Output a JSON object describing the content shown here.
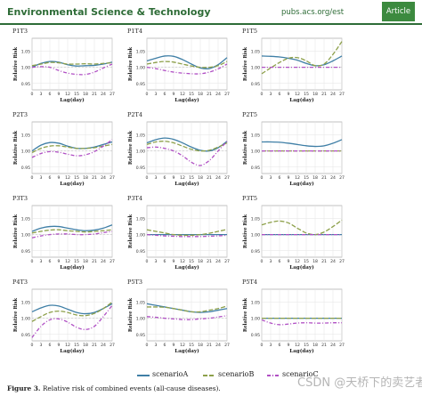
{
  "header": {
    "journal": "Environmental Science & Technology",
    "url": "pubs.acs.org/est",
    "badge": "Article"
  },
  "legend": [
    {
      "label": "scenarioA",
      "color": "#3f7fa6",
      "dash": ""
    },
    {
      "label": "scenarioB",
      "color": "#8da04a",
      "dash": "7,3"
    },
    {
      "label": "scenarioC",
      "color": "#b04fc4",
      "dash": "5,2,1.5,2"
    }
  ],
  "caption": {
    "bold": "Figure 3.",
    "text": " Relative risk of combined events (all-cause diseases)."
  },
  "watermark": "CSDN @天桥下的卖艺者",
  "chart_data": [
    {
      "type": "line",
      "title": "P1T3",
      "ylabel": "Relative Risk",
      "xlabel": "Lag(day)",
      "x": [
        0,
        3,
        6,
        9,
        12,
        15,
        18,
        21,
        24,
        27
      ],
      "xticks": [
        0,
        3,
        6,
        9,
        12,
        15,
        18,
        21,
        24,
        27
      ],
      "ylim": [
        0.93,
        1.09
      ],
      "yticks": [
        0.9,
        0.95,
        1.0,
        1.05
      ],
      "series": [
        {
          "name": "scenarioA",
          "values": [
            1.0,
            1.012,
            1.018,
            1.016,
            1.008,
            1.004,
            1.005,
            1.006,
            1.01,
            1.016
          ]
        },
        {
          "name": "scenarioB",
          "values": [
            1.005,
            1.01,
            1.015,
            1.014,
            1.01,
            1.01,
            1.011,
            1.01,
            1.012,
            1.014
          ]
        },
        {
          "name": "scenarioC",
          "values": [
            1.0,
            1.002,
            1.0,
            0.99,
            0.982,
            0.978,
            0.978,
            0.985,
            0.998,
            1.01
          ]
        }
      ]
    },
    {
      "type": "line",
      "title": "P1T4",
      "ylabel": "Relative Risk",
      "xlabel": "Lag(day)",
      "x": [
        0,
        3,
        6,
        9,
        12,
        15,
        18,
        21,
        24,
        27
      ],
      "xticks": [
        0,
        3,
        6,
        9,
        12,
        15,
        18,
        21,
        24,
        27
      ],
      "ylim": [
        0.93,
        1.09
      ],
      "yticks": [
        0.95,
        1.0,
        1.05
      ],
      "series": [
        {
          "name": "scenarioA",
          "values": [
            1.02,
            1.028,
            1.035,
            1.034,
            1.024,
            1.01,
            0.998,
            0.996,
            1.008,
            1.03
          ]
        },
        {
          "name": "scenarioB",
          "values": [
            1.01,
            1.015,
            1.018,
            1.016,
            1.01,
            1.004,
            1.0,
            1.0,
            1.005,
            1.018
          ]
        },
        {
          "name": "scenarioC",
          "values": [
            1.0,
            0.996,
            0.99,
            0.985,
            0.982,
            0.98,
            0.98,
            0.985,
            0.995,
            1.01
          ]
        }
      ]
    },
    {
      "type": "line",
      "title": "P1T5",
      "ylabel": "Relative Risk",
      "xlabel": "Lag(day)",
      "x": [
        0,
        3,
        6,
        9,
        12,
        15,
        18,
        21,
        24,
        27
      ],
      "xticks": [
        0,
        3,
        6,
        9,
        12,
        15,
        18,
        21,
        24,
        27
      ],
      "ylim": [
        0.93,
        1.09
      ],
      "yticks": [
        0.95,
        1.0,
        1.05
      ],
      "series": [
        {
          "name": "scenarioA",
          "values": [
            1.035,
            1.034,
            1.032,
            1.028,
            1.022,
            1.012,
            1.005,
            1.008,
            1.02,
            1.035
          ]
        },
        {
          "name": "scenarioB",
          "values": [
            0.98,
            0.998,
            1.015,
            1.028,
            1.03,
            1.02,
            1.005,
            1.01,
            1.04,
            1.08
          ]
        },
        {
          "name": "scenarioC",
          "values": [
            1.0,
            1.0,
            1.0,
            1.0,
            1.0,
            1.0,
            1.0,
            1.0,
            1.0,
            1.0
          ]
        }
      ]
    },
    {
      "type": "line",
      "title": "P2T3",
      "ylabel": "Relative Risk",
      "xlabel": "Lag(day)",
      "x": [
        0,
        3,
        6,
        9,
        12,
        15,
        18,
        21,
        24,
        27
      ],
      "xticks": [
        0,
        3,
        6,
        9,
        12,
        15,
        18,
        21,
        24,
        27
      ],
      "ylim": [
        0.93,
        1.09
      ],
      "yticks": [
        0.9,
        0.95,
        1.0,
        1.05
      ],
      "series": [
        {
          "name": "scenarioA",
          "values": [
            1.0,
            1.018,
            1.026,
            1.024,
            1.015,
            1.008,
            1.008,
            1.012,
            1.02,
            1.028
          ]
        },
        {
          "name": "scenarioB",
          "values": [
            0.995,
            1.008,
            1.015,
            1.016,
            1.012,
            1.008,
            1.008,
            1.01,
            1.015,
            1.02
          ]
        },
        {
          "name": "scenarioC",
          "values": [
            0.98,
            0.992,
            0.998,
            0.996,
            0.99,
            0.985,
            0.988,
            0.998,
            1.015,
            1.035
          ]
        }
      ]
    },
    {
      "type": "line",
      "title": "P2T4",
      "ylabel": "Relative Risk",
      "xlabel": "Lag(day)",
      "x": [
        0,
        3,
        6,
        9,
        12,
        15,
        18,
        21,
        24,
        27
      ],
      "xticks": [
        0,
        3,
        6,
        9,
        12,
        15,
        18,
        21,
        24,
        27
      ],
      "ylim": [
        0.93,
        1.09
      ],
      "yticks": [
        0.95,
        1.0,
        1.05
      ],
      "series": [
        {
          "name": "scenarioA",
          "values": [
            1.025,
            1.035,
            1.04,
            1.036,
            1.025,
            1.012,
            1.002,
            1.0,
            1.01,
            1.03
          ]
        },
        {
          "name": "scenarioB",
          "values": [
            1.02,
            1.028,
            1.03,
            1.025,
            1.015,
            1.005,
            1.0,
            1.002,
            1.012,
            1.025
          ]
        },
        {
          "name": "scenarioC",
          "values": [
            1.01,
            1.012,
            1.008,
            1.0,
            0.985,
            0.965,
            0.955,
            0.97,
            1.0,
            1.03
          ]
        }
      ]
    },
    {
      "type": "line",
      "title": "P2T5",
      "ylabel": "Relative Risk",
      "xlabel": "Lag(day)",
      "x": [
        0,
        3,
        6,
        9,
        12,
        15,
        18,
        21,
        24,
        27
      ],
      "xticks": [
        0,
        3,
        6,
        9,
        12,
        15,
        18,
        21,
        24,
        27
      ],
      "ylim": [
        0.93,
        1.09
      ],
      "yticks": [
        0.95,
        1.0,
        1.05
      ],
      "series": [
        {
          "name": "scenarioA",
          "values": [
            1.028,
            1.028,
            1.027,
            1.024,
            1.02,
            1.016,
            1.014,
            1.016,
            1.024,
            1.035
          ]
        },
        {
          "name": "scenarioB",
          "values": [
            1.0,
            1.0,
            1.0,
            1.0,
            1.0,
            1.0,
            1.0,
            1.0,
            1.0,
            1.0
          ]
        },
        {
          "name": "scenarioC",
          "values": [
            1.0,
            1.0,
            1.0,
            1.0,
            1.0,
            1.0,
            1.0,
            1.0,
            1.0,
            1.0
          ]
        }
      ]
    },
    {
      "type": "line",
      "title": "P3T3",
      "ylabel": "Relative Risk",
      "xlabel": "Lag(day)",
      "x": [
        0,
        3,
        6,
        9,
        12,
        15,
        18,
        21,
        24,
        27
      ],
      "xticks": [
        0,
        3,
        6,
        9,
        12,
        15,
        18,
        21,
        24,
        27
      ],
      "ylim": [
        0.93,
        1.09
      ],
      "yticks": [
        0.9,
        0.95,
        1.0,
        1.05
      ],
      "series": [
        {
          "name": "scenarioA",
          "values": [
            1.01,
            1.02,
            1.025,
            1.025,
            1.02,
            1.015,
            1.012,
            1.014,
            1.02,
            1.03
          ]
        },
        {
          "name": "scenarioB",
          "values": [
            1.005,
            1.01,
            1.014,
            1.015,
            1.012,
            1.01,
            1.008,
            1.01,
            1.012,
            1.015
          ]
        },
        {
          "name": "scenarioC",
          "values": [
            0.99,
            0.996,
            1.0,
            1.002,
            1.002,
            1.0,
            1.0,
            1.002,
            1.006,
            1.01
          ]
        }
      ]
    },
    {
      "type": "line",
      "title": "P3T4",
      "ylabel": "Relative Risk",
      "xlabel": "Lag(day)",
      "x": [
        0,
        3,
        6,
        9,
        12,
        15,
        18,
        21,
        24,
        27
      ],
      "xticks": [
        0,
        3,
        6,
        9,
        12,
        15,
        18,
        21,
        24,
        27
      ],
      "ylim": [
        0.93,
        1.09
      ],
      "yticks": [
        0.95,
        1.0,
        1.05
      ],
      "series": [
        {
          "name": "scenarioA",
          "values": [
            1.0,
            1.0,
            1.0,
            1.0,
            1.0,
            1.0,
            1.0,
            1.0,
            1.0,
            1.0
          ]
        },
        {
          "name": "scenarioB",
          "values": [
            1.015,
            1.01,
            1.005,
            1.0,
            0.998,
            0.998,
            1.0,
            1.004,
            1.01,
            1.016
          ]
        },
        {
          "name": "scenarioC",
          "values": [
            1.0,
            0.998,
            0.996,
            0.995,
            0.994,
            0.994,
            0.994,
            0.995,
            0.996,
            0.998
          ]
        }
      ]
    },
    {
      "type": "line",
      "title": "P3T5",
      "ylabel": "Relative Risk",
      "xlabel": "Lag(day)",
      "x": [
        0,
        3,
        6,
        9,
        12,
        15,
        18,
        21,
        24,
        27
      ],
      "xticks": [
        0,
        3,
        6,
        9,
        12,
        15,
        18,
        21,
        24,
        27
      ],
      "ylim": [
        0.93,
        1.09
      ],
      "yticks": [
        0.95,
        1.0,
        1.05
      ],
      "series": [
        {
          "name": "scenarioA",
          "values": [
            1.0,
            1.0,
            1.0,
            1.0,
            1.0,
            1.0,
            1.0,
            1.0,
            1.0,
            1.0
          ]
        },
        {
          "name": "scenarioB",
          "values": [
            1.03,
            1.038,
            1.042,
            1.036,
            1.02,
            1.005,
            1.0,
            1.008,
            1.025,
            1.045
          ]
        },
        {
          "name": "scenarioC",
          "values": [
            1.0,
            1.0,
            1.0,
            1.0,
            1.0,
            1.0,
            1.0,
            1.0,
            1.0,
            1.0
          ]
        }
      ]
    },
    {
      "type": "line",
      "title": "P4T3",
      "ylabel": "Relative Risk",
      "xlabel": "Lag(day)",
      "x": [
        0,
        3,
        6,
        9,
        12,
        15,
        18,
        21,
        24,
        27
      ],
      "xticks": [
        0,
        3,
        6,
        9,
        12,
        15,
        18,
        21,
        24,
        27
      ],
      "ylim": [
        0.93,
        1.09
      ],
      "yticks": [
        0.9,
        0.95,
        1.0,
        1.05
      ],
      "series": [
        {
          "name": "scenarioA",
          "values": [
            1.02,
            1.032,
            1.04,
            1.038,
            1.028,
            1.018,
            1.014,
            1.018,
            1.03,
            1.045
          ]
        },
        {
          "name": "scenarioB",
          "values": [
            0.99,
            1.005,
            1.018,
            1.022,
            1.018,
            1.01,
            1.008,
            1.015,
            1.03,
            1.05
          ]
        },
        {
          "name": "scenarioC",
          "values": [
            0.94,
            0.975,
            0.995,
            0.998,
            0.988,
            0.972,
            0.965,
            0.975,
            1.005,
            1.04
          ]
        }
      ]
    },
    {
      "type": "line",
      "title": "P5T3",
      "ylabel": "Relative Risk",
      "xlabel": "Lag(day)",
      "x": [
        0,
        3,
        6,
        9,
        12,
        15,
        18,
        21,
        24,
        27
      ],
      "xticks": [
        0,
        3,
        6,
        9,
        12,
        15,
        18,
        21,
        24,
        27
      ],
      "ylim": [
        0.93,
        1.09
      ],
      "yticks": [
        0.9,
        0.95,
        1.0,
        1.05
      ],
      "series": [
        {
          "name": "scenarioA",
          "values": [
            1.045,
            1.04,
            1.035,
            1.03,
            1.025,
            1.02,
            1.018,
            1.02,
            1.025,
            1.03
          ]
        },
        {
          "name": "scenarioB",
          "values": [
            1.035,
            1.035,
            1.034,
            1.03,
            1.025,
            1.02,
            1.02,
            1.025,
            1.03,
            1.038
          ]
        },
        {
          "name": "scenarioC",
          "values": [
            1.005,
            1.003,
            1.0,
            0.998,
            0.996,
            0.996,
            0.998,
            1.0,
            1.004,
            1.008
          ]
        }
      ]
    },
    {
      "type": "line",
      "title": "P5T4",
      "ylabel": "Relative Risk",
      "xlabel": "Lag(day)",
      "x": [
        0,
        3,
        6,
        9,
        12,
        15,
        18,
        21,
        24,
        27
      ],
      "xticks": [
        0,
        3,
        6,
        9,
        12,
        15,
        18,
        21,
        24,
        27
      ],
      "ylim": [
        0.93,
        1.09
      ],
      "yticks": [
        0.95,
        1.0,
        1.05
      ],
      "series": [
        {
          "name": "scenarioA",
          "values": [
            1.0,
            1.0,
            1.0,
            1.0,
            1.0,
            1.0,
            1.0,
            1.0,
            1.0,
            1.0
          ]
        },
        {
          "name": "scenarioB",
          "values": [
            1.0,
            1.0,
            1.0,
            1.0,
            1.0,
            1.0,
            1.0,
            1.0,
            1.0,
            1.0
          ]
        },
        {
          "name": "scenarioC",
          "values": [
            0.995,
            0.985,
            0.98,
            0.982,
            0.985,
            0.986,
            0.985,
            0.985,
            0.986,
            0.986
          ]
        }
      ]
    }
  ]
}
